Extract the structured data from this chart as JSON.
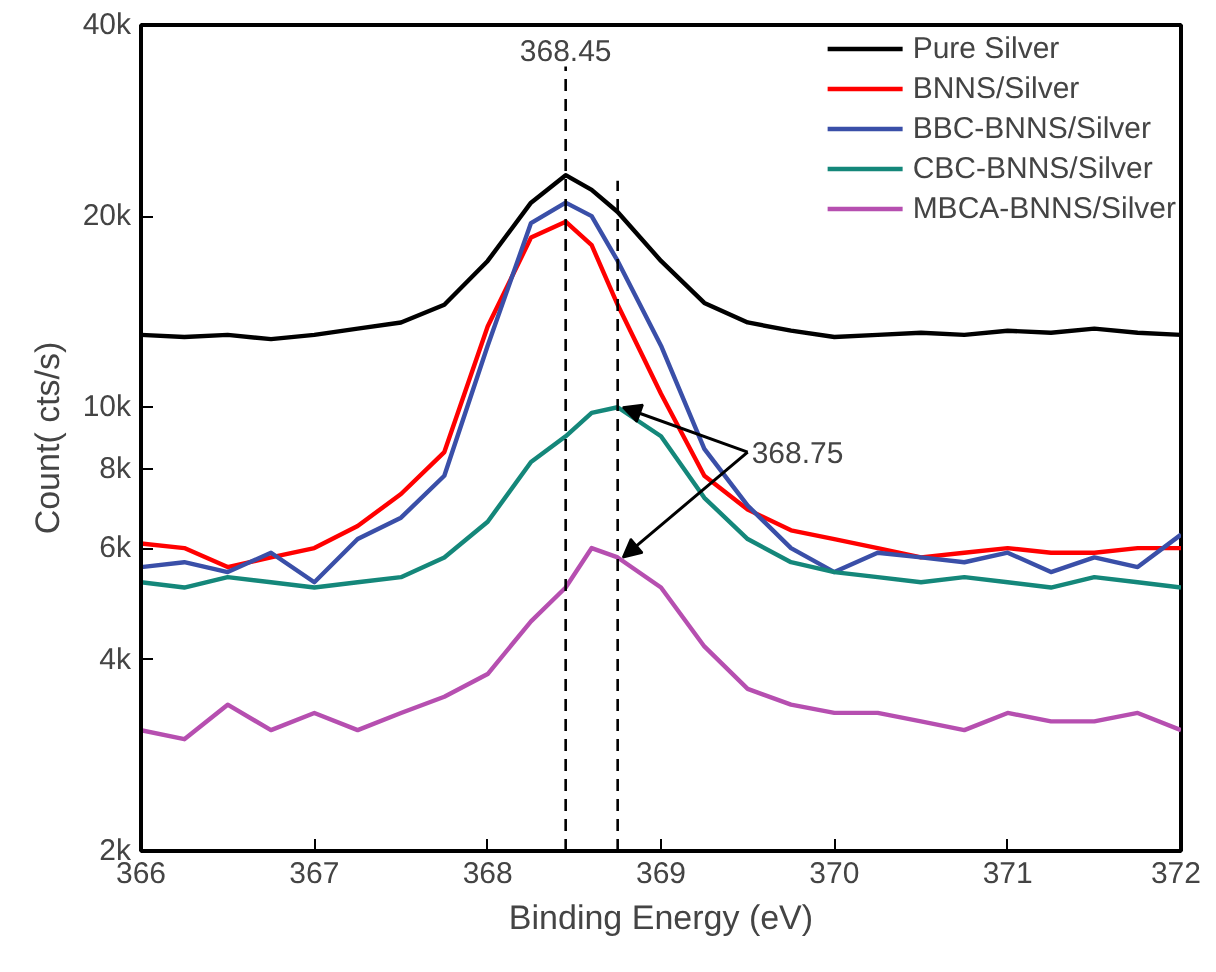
{
  "chart_data": {
    "type": "line",
    "xlabel": "Binding Energy (eV)",
    "ylabel": "Count( cts/s)",
    "x": [
      366,
      366.25,
      366.5,
      366.75,
      367,
      367.25,
      367.5,
      367.75,
      368,
      368.25,
      368.45,
      368.6,
      368.75,
      369,
      369.25,
      369.5,
      369.75,
      370,
      370.25,
      370.5,
      370.75,
      371,
      371.25,
      371.5,
      371.75,
      372
    ],
    "series": [
      {
        "name": "Pure Silver",
        "color": "#000000",
        "values": [
          13000,
          12900,
          13000,
          12800,
          13000,
          13300,
          13600,
          14500,
          17000,
          21000,
          23200,
          22000,
          20300,
          17000,
          14600,
          13600,
          13200,
          12900,
          13000,
          13100,
          13000,
          13200,
          13100,
          13300,
          13100,
          13000
        ]
      },
      {
        "name": "BNNS/Silver",
        "color": "#ff0000",
        "values": [
          6100,
          6000,
          5600,
          5800,
          6000,
          6500,
          7300,
          8500,
          13400,
          18500,
          19600,
          18000,
          14500,
          10500,
          7800,
          6900,
          6400,
          6200,
          6000,
          5800,
          5900,
          6000,
          5900,
          5900,
          6000,
          6000
        ]
      },
      {
        "name": "BBC-BNNS/Silver",
        "color": "#3a4fa8",
        "values": [
          5600,
          5700,
          5500,
          5900,
          5300,
          6200,
          6700,
          7800,
          12500,
          19500,
          21000,
          20000,
          17000,
          12500,
          8600,
          7000,
          6000,
          5500,
          5900,
          5800,
          5700,
          5900,
          5500,
          5800,
          5600,
          6300
        ]
      },
      {
        "name": "CBC-BNNS/Silver",
        "color": "#14877a",
        "values": [
          5300,
          5200,
          5400,
          5300,
          5200,
          5300,
          5400,
          5800,
          6600,
          8200,
          9000,
          9800,
          10000,
          9000,
          7200,
          6200,
          5700,
          5500,
          5400,
          5300,
          5400,
          5300,
          5200,
          5400,
          5300,
          5200
        ]
      },
      {
        "name": "MBCA-BNNS/Silver",
        "color": "#b64fb0",
        "values": [
          3100,
          3000,
          3400,
          3100,
          3300,
          3100,
          3300,
          3500,
          3800,
          4600,
          5200,
          6000,
          5800,
          5200,
          4200,
          3600,
          3400,
          3300,
          3300,
          3200,
          3100,
          3300,
          3200,
          3200,
          3300,
          3100
        ]
      }
    ],
    "xlim": [
      366,
      372
    ],
    "xticks": [
      366,
      367,
      368,
      369,
      370,
      371,
      372
    ],
    "ylim": [
      2000,
      40000
    ],
    "yticks": [
      {
        "value": 2000,
        "label": "2k"
      },
      {
        "value": 4000,
        "label": "4k"
      },
      {
        "value": 6000,
        "label": "6k"
      },
      {
        "value": 8000,
        "label": "8k"
      },
      {
        "value": 10000,
        "label": "10k"
      },
      {
        "value": 20000,
        "label": "20k"
      },
      {
        "value": 40000,
        "label": "40k"
      }
    ],
    "log": "y",
    "grid": false,
    "legend": "top right",
    "ref_lines": [
      {
        "axis": "x",
        "value": 368.45,
        "label": "368.45",
        "line_style": "dashed",
        "color": "#000000"
      },
      {
        "axis": "x",
        "value": 368.75,
        "line_style": "dashed",
        "color": "#000000"
      }
    ],
    "annotations": [
      {
        "text": "368.75",
        "x": 368.75,
        "y": 10000
      }
    ]
  }
}
